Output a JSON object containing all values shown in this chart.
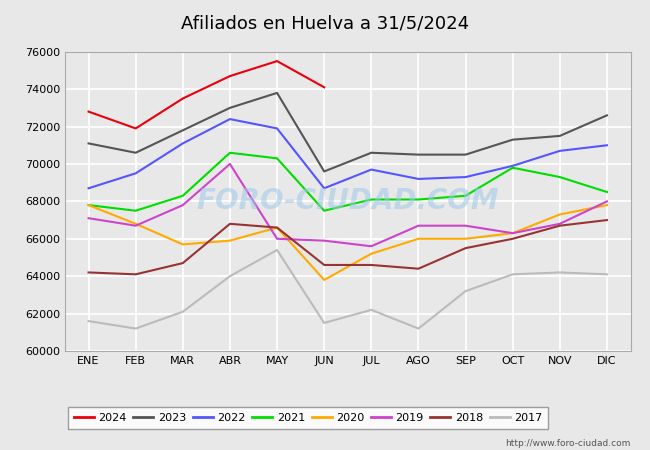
{
  "title": "Afiliados en Huelva a 31/5/2024",
  "title_bg_color": "#4d9de0",
  "ylim": [
    60000,
    76000
  ],
  "yticks": [
    60000,
    62000,
    64000,
    66000,
    68000,
    70000,
    72000,
    74000,
    76000
  ],
  "months": [
    "ENE",
    "FEB",
    "MAR",
    "ABR",
    "MAY",
    "JUN",
    "JUL",
    "AGO",
    "SEP",
    "OCT",
    "NOV",
    "DIC"
  ],
  "watermark": "FORO-CIUDAD.COM",
  "footer": "http://www.foro-ciudad.com",
  "series": {
    "2024": {
      "color": "#e8000d",
      "data": [
        72800,
        71900,
        73500,
        74700,
        75500,
        74100,
        null,
        null,
        null,
        null,
        null,
        null
      ]
    },
    "2023": {
      "color": "#555555",
      "data": [
        71100,
        70600,
        71800,
        73000,
        73800,
        69600,
        70600,
        70500,
        70500,
        71300,
        71500,
        72600
      ]
    },
    "2022": {
      "color": "#5555ff",
      "data": [
        68700,
        69500,
        71100,
        72400,
        71900,
        68700,
        69700,
        69200,
        69300,
        69900,
        70700,
        71000
      ]
    },
    "2021": {
      "color": "#00dd00",
      "data": [
        67800,
        67500,
        68300,
        70600,
        70300,
        67500,
        68100,
        68100,
        68300,
        69800,
        69300,
        68500
      ]
    },
    "2020": {
      "color": "#ffaa00",
      "data": [
        67800,
        66800,
        65700,
        65900,
        66600,
        63800,
        65200,
        66000,
        66000,
        66300,
        67300,
        67800
      ]
    },
    "2019": {
      "color": "#cc44cc",
      "data": [
        67100,
        66700,
        67800,
        70000,
        66000,
        65900,
        65600,
        66700,
        66700,
        66300,
        66800,
        68000
      ]
    },
    "2018": {
      "color": "#993333",
      "data": [
        64200,
        64100,
        64700,
        66800,
        66600,
        64600,
        64600,
        64400,
        65500,
        66000,
        66700,
        67000
      ]
    },
    "2017": {
      "color": "#bbbbbb",
      "data": [
        61600,
        61200,
        62100,
        64000,
        65400,
        61500,
        62200,
        61200,
        63200,
        64100,
        64200,
        64100
      ]
    }
  },
  "legend_order": [
    "2024",
    "2023",
    "2022",
    "2021",
    "2020",
    "2019",
    "2018",
    "2017"
  ],
  "bg_color": "#e8e8e8",
  "plot_bg_color": "#e8e8e8",
  "grid_color": "#ffffff",
  "fontsize_title": 13,
  "fontsize_ticks": 8,
  "fontsize_legend": 8
}
